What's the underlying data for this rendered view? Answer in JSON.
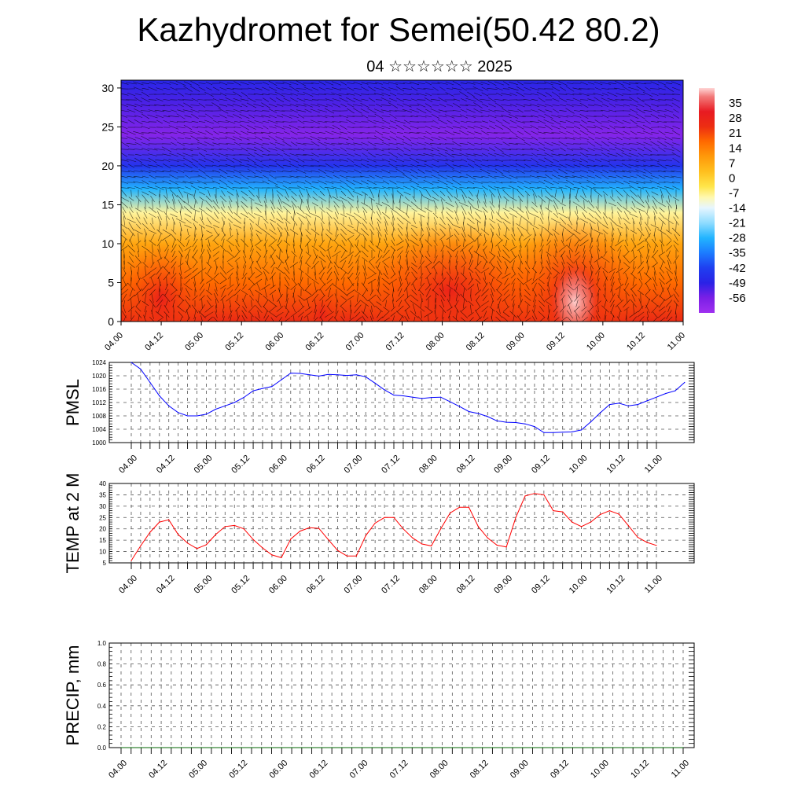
{
  "title": "Kazhydromet for Semei(50.42 80.2)",
  "subtitle": "04 ☆☆☆☆☆☆ 2025",
  "chart_data": [
    {
      "type": "heatmap",
      "title": "Kazhydromet for Semei(50.42 80.2)",
      "subtitle": "04 ☆☆☆☆☆☆ 2025",
      "x_tick_labels": [
        "04.00",
        "04.12",
        "05.00",
        "05.12",
        "06.00",
        "06.12",
        "07.00",
        "07.12",
        "08.00",
        "08.12",
        "09.00",
        "09.12",
        "10.00",
        "10.12",
        "11.00"
      ],
      "y_tick_labels": [
        "0",
        "5",
        "10",
        "15",
        "20",
        "25",
        "30"
      ],
      "ylim": [
        0,
        31
      ],
      "colorbar_labels": [
        "35",
        "28",
        "21",
        "14",
        "7",
        "0",
        "-7",
        "-14",
        "-21",
        "-28",
        "-35",
        "-42",
        "-49",
        "-56"
      ],
      "colorbar_range": [
        -63,
        42
      ],
      "vertical_profile_temperature": [
        {
          "height": 0,
          "value": 25
        },
        {
          "height": 5,
          "value": 17
        },
        {
          "height": 10,
          "value": 8
        },
        {
          "height": 14,
          "value": -8
        },
        {
          "height": 17,
          "value": -28
        },
        {
          "height": 20,
          "value": -45
        },
        {
          "height": 24,
          "value": -58
        },
        {
          "height": 28,
          "value": -52
        },
        {
          "height": 31,
          "value": -48
        }
      ],
      "overlay": "wind barbs",
      "colors": [
        "#ffd5d5",
        "#e8181c",
        "#ff6a00",
        "#ffd21e",
        "#ffffb0",
        "#9fe6ff",
        "#1f9bff",
        "#2323e0",
        "#7a1fe6",
        "#9a2ef0"
      ]
    },
    {
      "type": "line",
      "ylabel": "PMSL",
      "ylim": [
        1000,
        1024
      ],
      "y_tick_labels": [
        "1000",
        "1004",
        "1008",
        "1012",
        "1016",
        "1020",
        "1024"
      ],
      "x_tick_labels": [
        "04.00",
        "04.12",
        "05.00",
        "05.12",
        "06.00",
        "06.12",
        "07.00",
        "07.12",
        "08.00",
        "08.12",
        "09.00",
        "09.12",
        "10.00",
        "10.12",
        "11.00"
      ],
      "x_step_hours": 3,
      "color": "#0000ff",
      "values": [
        1024,
        1022,
        1018,
        1014,
        1011,
        1009,
        1008,
        1008,
        1008.5,
        1010,
        1011,
        1012,
        1013.5,
        1015.5,
        1016.2,
        1016.8,
        1018.8,
        1020.8,
        1020.7,
        1020.3,
        1019.9,
        1020.4,
        1020.3,
        1020.1,
        1020.3,
        1019.7,
        1017.8,
        1015.8,
        1014.2,
        1014,
        1013.6,
        1013.2,
        1013.5,
        1013.6,
        1012.2,
        1010.8,
        1009.3,
        1008.7,
        1007.8,
        1006.5,
        1006.1,
        1006,
        1005.6,
        1004.8,
        1003,
        1003,
        1003.1,
        1003.2,
        1003.8,
        1006.2,
        1008.9,
        1011.4,
        1011.8,
        1011,
        1011.4,
        1012.5,
        1013.6,
        1014.7,
        1015.5,
        1018
      ]
    },
    {
      "type": "line",
      "ylabel": "TEMP at 2 M",
      "ylim": [
        5,
        40
      ],
      "y_tick_labels": [
        "5",
        "10",
        "15",
        "20",
        "25",
        "30",
        "35",
        "40"
      ],
      "x_tick_labels": [
        "04.00",
        "04.12",
        "05.00",
        "05.12",
        "06.00",
        "06.12",
        "07.00",
        "07.12",
        "08.00",
        "08.12",
        "09.00",
        "09.12",
        "10.00",
        "10.12",
        "11.00"
      ],
      "x_step_hours": 3,
      "color": "#ff0000",
      "values": [
        6,
        12.5,
        18.5,
        23,
        24,
        17.5,
        13.7,
        11.3,
        13,
        17.5,
        21,
        21.5,
        20,
        15.3,
        11.6,
        8.5,
        7.3,
        15.5,
        19,
        20.5,
        20.2,
        15.3,
        10.5,
        8,
        8,
        17,
        22.5,
        25,
        25,
        20,
        16,
        13.3,
        12.5,
        20,
        27,
        29.5,
        29.5,
        21,
        16,
        12.8,
        12,
        25,
        34.5,
        35.6,
        35,
        28,
        27.5,
        23,
        21,
        23,
        26.3,
        28,
        26.5,
        21.5,
        16.3,
        14,
        12.7
      ]
    },
    {
      "type": "line",
      "ylabel": "PRECIP, mm",
      "ylim": [
        0,
        1
      ],
      "y_tick_labels": [
        "0.0",
        "0.2",
        "0.4",
        "0.6",
        "0.8",
        "1.0"
      ],
      "x_tick_labels": [
        "04.00",
        "04.12",
        "05.00",
        "05.12",
        "06.00",
        "06.12",
        "07.00",
        "07.12",
        "08.00",
        "08.12",
        "09.00",
        "09.12",
        "10.00",
        "10.12",
        "11.00"
      ],
      "x_step_hours": 3,
      "color": "#006400",
      "values": [
        0,
        0,
        0,
        0,
        0,
        0,
        0,
        0,
        0,
        0,
        0,
        0,
        0,
        0,
        0,
        0,
        0,
        0,
        0,
        0,
        0,
        0,
        0,
        0,
        0,
        0,
        0,
        0,
        0,
        0,
        0,
        0,
        0,
        0,
        0,
        0,
        0,
        0,
        0,
        0,
        0,
        0,
        0,
        0,
        0,
        0,
        0,
        0,
        0,
        0,
        0,
        0,
        0,
        0,
        0,
        0,
        0
      ]
    }
  ]
}
